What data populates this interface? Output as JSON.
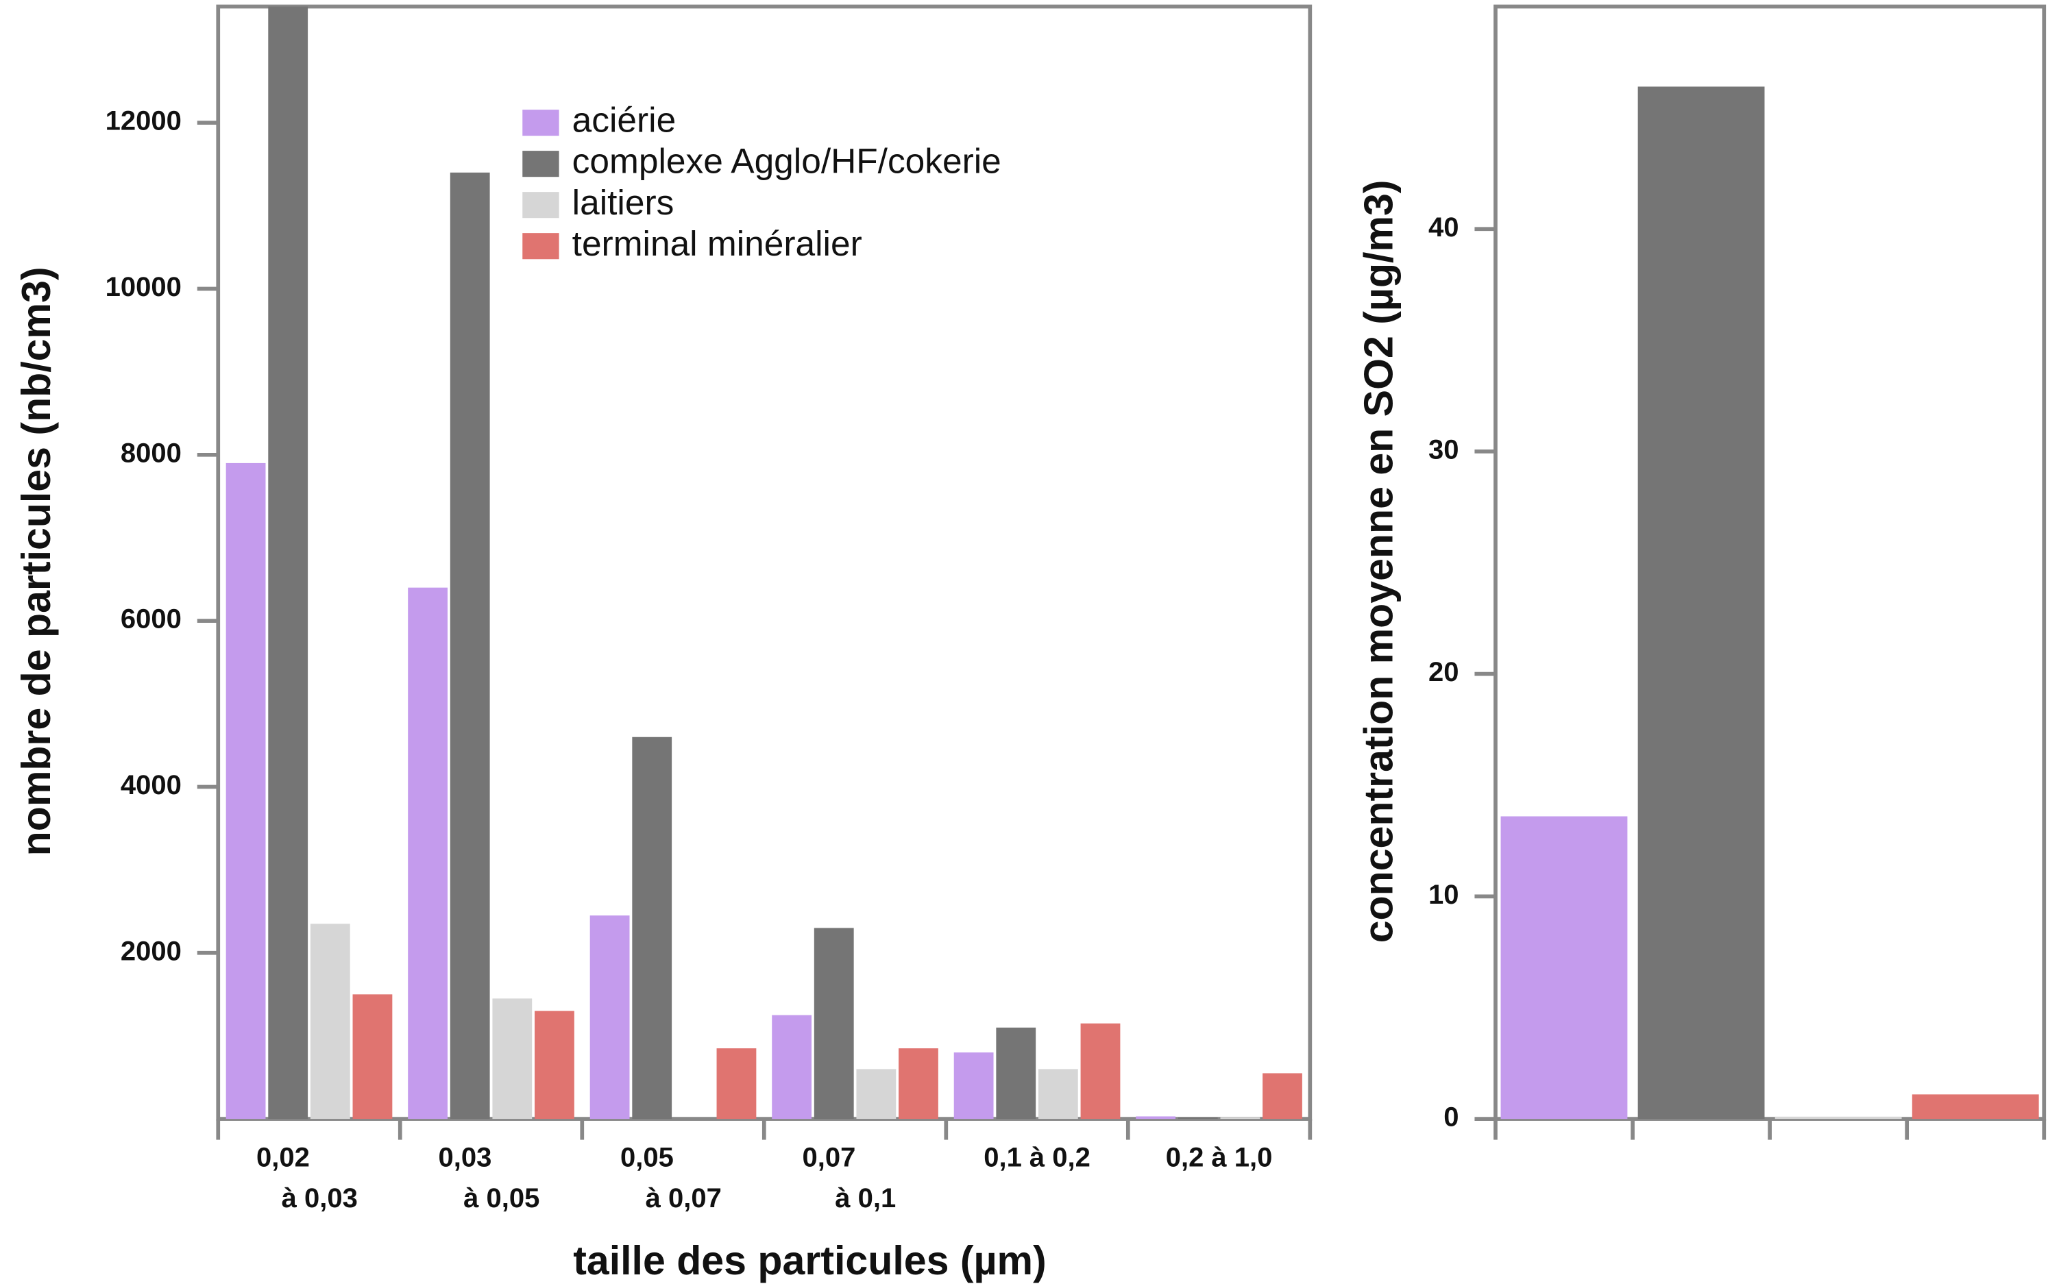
{
  "chart_data": [
    {
      "type": "bar",
      "x_label": "taille des particules (µm)",
      "y_label": "nombre de particules (nb/cm3)",
      "categories": [
        [
          "0,02",
          "à 0,03"
        ],
        [
          "0,03",
          "à 0,05"
        ],
        [
          "0,05",
          "à 0,07"
        ],
        [
          "0,07",
          "à 0,1"
        ],
        [
          "0,1 à 0,2"
        ],
        [
          "0,2 à 1,0"
        ]
      ],
      "series": [
        {
          "name": "aciérie",
          "color": "#c49bed",
          "values": [
            7900,
            6400,
            2450,
            1250,
            800,
            30
          ]
        },
        {
          "name": "complexe Agglo/HF/cokerie",
          "color": "#757575",
          "values": [
            13400,
            11400,
            4600,
            2300,
            1100,
            20
          ]
        },
        {
          "name": "laitiers",
          "color": "#d6d6d6",
          "values": [
            2350,
            1450,
            0,
            600,
            600,
            20
          ]
        },
        {
          "name": "terminal minéralier",
          "color": "#e07470",
          "values": [
            1500,
            1300,
            850,
            850,
            1150,
            550
          ]
        }
      ],
      "ylim": [
        0,
        13400
      ],
      "yticks": [
        2000,
        4000,
        6000,
        8000,
        10000,
        12000
      ]
    },
    {
      "type": "bar",
      "y_label": "concentration moyenne en SO2 (µg/m3)",
      "categories": [
        null,
        null,
        null,
        null
      ],
      "values": [
        13.6,
        46.4,
        0.1,
        1.1
      ],
      "colors": [
        "#c49bed",
        "#757575",
        "#d6d6d6",
        "#e07470"
      ],
      "ylim": [
        0,
        50
      ],
      "yticks": [
        0,
        10,
        20,
        30,
        40
      ]
    }
  ]
}
